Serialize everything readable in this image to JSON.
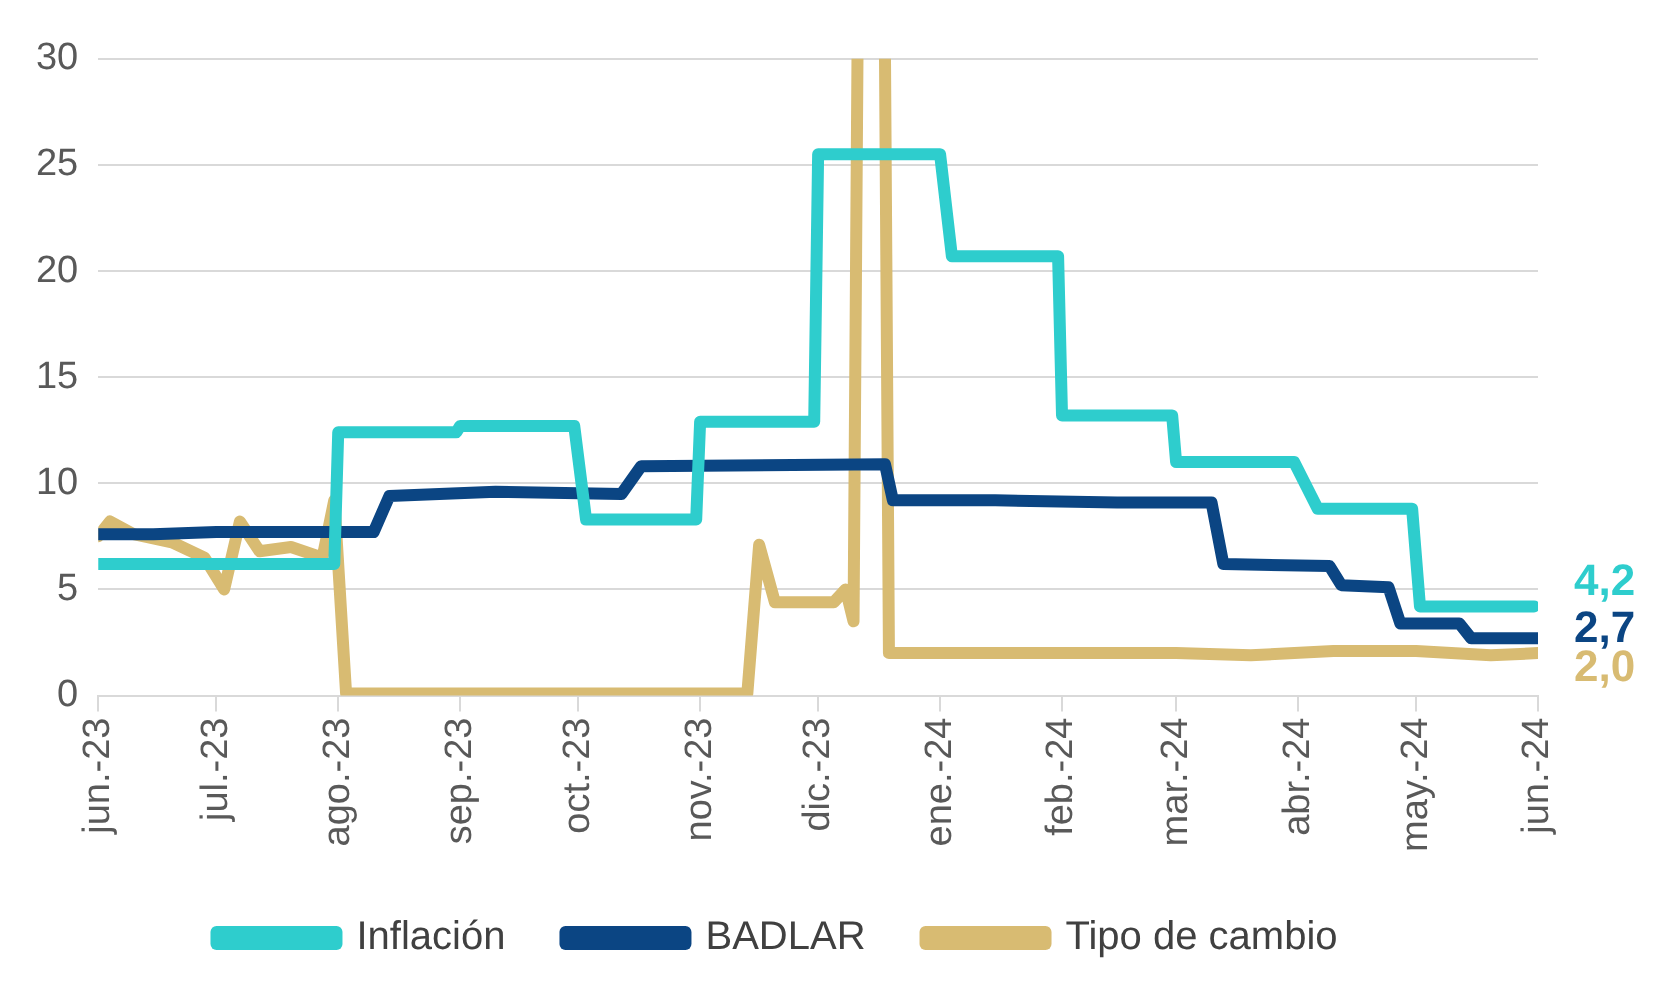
{
  "chart_data": {
    "type": "line",
    "xlim": [
      "2023-06-01",
      "2024-06-01"
    ],
    "xticks": [
      {
        "value": "2023-06-01",
        "label": "jun.-23"
      },
      {
        "value": "2023-07-01",
        "label": "jul.-23"
      },
      {
        "value": "2023-08-01",
        "label": "ago.-23"
      },
      {
        "value": "2023-09-01",
        "label": "sep.-23"
      },
      {
        "value": "2023-10-01",
        "label": "oct.-23"
      },
      {
        "value": "2023-11-01",
        "label": "nov.-23"
      },
      {
        "value": "2023-12-01",
        "label": "dic.-23"
      },
      {
        "value": "2024-01-01",
        "label": "ene.-24"
      },
      {
        "value": "2024-02-01",
        "label": "feb.-24"
      },
      {
        "value": "2024-03-01",
        "label": "mar.-24"
      },
      {
        "value": "2024-04-01",
        "label": "abr.-24"
      },
      {
        "value": "2024-05-01",
        "label": "may.-24"
      },
      {
        "value": "2024-06-01",
        "label": "jun.-24"
      }
    ],
    "ylim": [
      0,
      30
    ],
    "yticks": [
      0,
      5,
      10,
      15,
      20,
      25,
      30
    ],
    "grid": "y",
    "legend": "bottom",
    "marker": "none",
    "line_style": "solid",
    "series": [
      {
        "name": "Inflación",
        "color": "#2ecdcd",
        "x": [
          "2023-06-01",
          "2023-07-31",
          "2023-08-01",
          "2023-08-31",
          "2023-09-01",
          "2023-09-30",
          "2023-10-03",
          "2023-10-31",
          "2023-11-01",
          "2023-11-30",
          "2023-12-01",
          "2024-01-01",
          "2024-01-04",
          "2024-01-31",
          "2024-02-01",
          "2024-02-29",
          "2024-03-01",
          "2024-03-31",
          "2024-04-06",
          "2024-04-30",
          "2024-05-02",
          "2024-05-31"
        ],
        "values": [
          6.2,
          6.2,
          12.4,
          12.4,
          12.7,
          12.7,
          8.3,
          8.3,
          12.9,
          12.9,
          25.5,
          25.5,
          20.7,
          20.7,
          13.2,
          13.2,
          11.0,
          11.0,
          8.8,
          8.8,
          4.2,
          4.2
        ]
      },
      {
        "name": "BADLAR",
        "color": "#0b4583",
        "x": [
          "2023-06-01",
          "2023-06-15",
          "2023-07-01",
          "2023-08-10",
          "2023-08-14",
          "2023-09-10",
          "2023-10-12",
          "2023-10-17",
          "2023-12-18",
          "2023-12-20",
          "2024-01-15",
          "2024-02-15",
          "2024-03-10",
          "2024-03-13",
          "2024-04-09",
          "2024-04-12",
          "2024-04-24",
          "2024-04-27",
          "2024-05-12",
          "2024-05-15",
          "2024-06-01"
        ],
        "values": [
          7.6,
          7.6,
          7.7,
          7.7,
          9.4,
          9.6,
          9.5,
          10.8,
          10.9,
          9.2,
          9.2,
          9.1,
          9.1,
          6.2,
          6.1,
          5.2,
          5.1,
          3.4,
          3.4,
          2.7,
          2.7
        ]
      },
      {
        "name": "Tipo de cambio",
        "color": "#d8bb72",
        "x": [
          "2023-06-01",
          "2023-06-04",
          "2023-06-10",
          "2023-06-20",
          "2023-06-28",
          "2023-07-03",
          "2023-07-07",
          "2023-07-12",
          "2023-07-20",
          "2023-07-28",
          "2023-07-31",
          "2023-08-03",
          "2023-11-13",
          "2023-11-16",
          "2023-11-20",
          "2023-12-05",
          "2023-12-08",
          "2023-12-10",
          "2023-12-11",
          "2023-12-12",
          "2023-12-18",
          "2023-12-19",
          "2024-03-01",
          "2024-03-20",
          "2024-04-10",
          "2024-05-01",
          "2024-05-20",
          "2024-06-01"
        ],
        "values": [
          7.5,
          8.2,
          7.6,
          7.2,
          6.5,
          5.0,
          8.2,
          6.8,
          7.0,
          6.5,
          9.2,
          0.1,
          0.1,
          7.1,
          4.4,
          4.4,
          5.0,
          3.5,
          30,
          null,
          30,
          2.0,
          2.0,
          1.9,
          2.1,
          2.1,
          1.9,
          2.0
        ]
      }
    ],
    "annotations": [
      {
        "text": "4,2",
        "x": "2024-05-31",
        "y": 4.2
      },
      {
        "text": "2,7",
        "x": "2024-06-01",
        "y": 2.7
      },
      {
        "text": "2,0",
        "x": "2024-06-01",
        "y": 2.0
      }
    ]
  }
}
